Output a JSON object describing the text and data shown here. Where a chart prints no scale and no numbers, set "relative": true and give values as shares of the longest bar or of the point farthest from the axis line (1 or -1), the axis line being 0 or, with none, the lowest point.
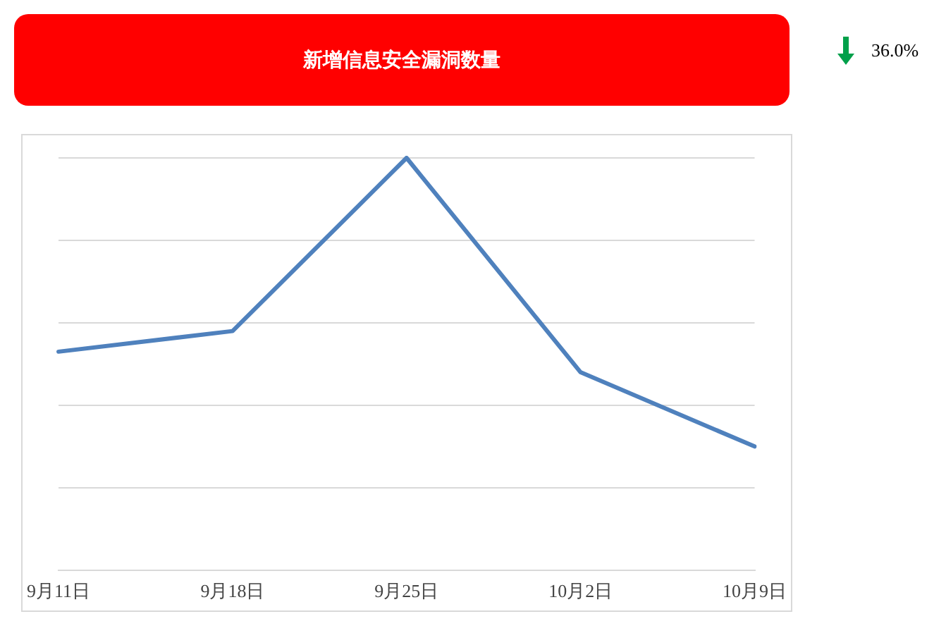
{
  "chart_data": {
    "type": "line",
    "title": "新增信息安全漏洞数量",
    "categories": [
      "9月11日",
      "9月18日",
      "9月25日",
      "10月2日",
      "10月9日"
    ],
    "series": [
      {
        "color": "#4f81bd",
        "values": [
          0.53,
          0.58,
          1,
          0.48,
          0.3
        ]
      }
    ],
    "relative": true,
    "grid": "y",
    "legend": false,
    "marker": "none",
    "line_style": "solid",
    "annotations": [
      "36.0%"
    ]
  }
}
